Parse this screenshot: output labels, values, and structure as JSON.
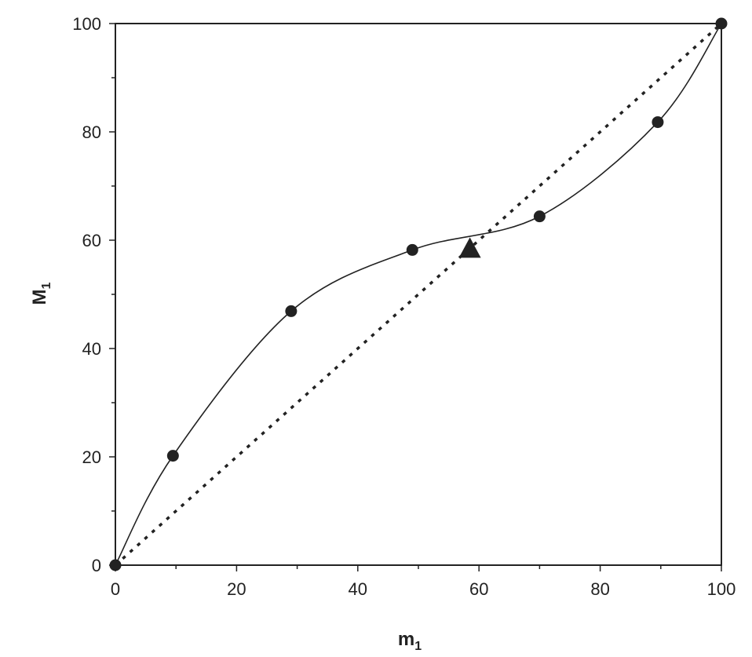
{
  "chart_data": {
    "type": "scatter",
    "xlabel": {
      "main": "m",
      "sub": "1"
    },
    "ylabel": {
      "main": "M",
      "sub": "1"
    },
    "xlim": [
      0,
      100
    ],
    "ylim": [
      0,
      100
    ],
    "x_ticks": [
      "0",
      "20",
      "40",
      "60",
      "80",
      "100"
    ],
    "y_ticks": [
      "0",
      "20",
      "40",
      "60",
      "80",
      "100"
    ],
    "x_tick_values": [
      0,
      20,
      40,
      60,
      80,
      100
    ],
    "y_tick_values": [
      0,
      20,
      40,
      60,
      80,
      100
    ],
    "minor_tick_step": 10,
    "grid": false,
    "legend": "none",
    "series": [
      {
        "marker": "circle",
        "line": "smooth solid",
        "points": [
          {
            "x": 0,
            "y": 0
          },
          {
            "x": 9.5,
            "y": 20.2
          },
          {
            "x": 29,
            "y": 46.9
          },
          {
            "x": 49,
            "y": 58.2
          },
          {
            "x": 70,
            "y": 64.4
          },
          {
            "x": 89.5,
            "y": 81.8
          },
          {
            "x": 100,
            "y": 100
          }
        ]
      },
      {
        "marker": "none",
        "line": "dotted",
        "points": [
          {
            "x": 0,
            "y": 0
          },
          {
            "x": 100,
            "y": 100
          }
        ]
      }
    ],
    "annotations": [
      {
        "marker": "triangle",
        "x": 58.5,
        "y": 58.5
      }
    ],
    "colors": {
      "ink": "#222222",
      "background": "#ffffff"
    }
  }
}
